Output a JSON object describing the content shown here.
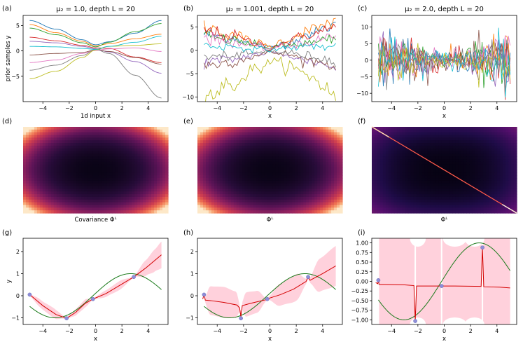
{
  "panel_letters": [
    "(a)",
    "(b)",
    "(c)",
    "(d)",
    "(e)",
    "(f)",
    "(g)",
    "(h)",
    "(i)"
  ],
  "colors": {
    "series": [
      "#1f77b4",
      "#ff7f0e",
      "#2ca02c",
      "#d62728",
      "#9467bd",
      "#8c564b",
      "#e377c2",
      "#7f7f7f",
      "#bcbd22",
      "#17becf"
    ],
    "mean": "#d40000",
    "truth": "#1a7a1a",
    "band": "#ffd1dc",
    "points": "#8e8ed8"
  },
  "chart_data": [
    {
      "id": "a",
      "type": "line",
      "title": "μ₂ = 1.0, depth L = 20",
      "xlabel": "1d input x",
      "ylabel": "prior samples y",
      "xlim": [
        -5.5,
        5.5
      ],
      "ylim": [
        -10,
        7
      ],
      "xticks": [
        -4,
        -2,
        0,
        2,
        4
      ],
      "yticks": [
        -5,
        0,
        5
      ],
      "x": [
        -5,
        -3,
        -1,
        0,
        1,
        3,
        5
      ],
      "series": [
        {
          "values": [
            6,
            4.3,
            2.2,
            1.2,
            1.8,
            3.5,
            6
          ]
        },
        {
          "values": [
            5.2,
            3.6,
            1.9,
            1.0,
            1.4,
            2.4,
            3.3
          ]
        },
        {
          "values": [
            4.5,
            3.2,
            1.6,
            0.8,
            1.7,
            3.8,
            5.4
          ]
        },
        {
          "values": [
            2.7,
            2.0,
            1.1,
            0.6,
            0.5,
            -1.2,
            -2.3
          ]
        },
        {
          "values": [
            1.9,
            1.6,
            0.9,
            0.4,
            -0.2,
            -2.1,
            -4.4
          ]
        },
        {
          "values": [
            -0.8,
            -0.5,
            -0.3,
            0.2,
            -0.1,
            -1.3,
            -2.6
          ]
        },
        {
          "values": [
            -2.3,
            -1.8,
            -0.5,
            0.1,
            0.4,
            0.6,
            -0.1
          ]
        },
        {
          "values": [
            -3.8,
            -2.8,
            -0.9,
            0.3,
            -0.5,
            -4.8,
            -9.3
          ]
        },
        {
          "values": [
            -5.5,
            -4.0,
            -1.3,
            0.2,
            0.9,
            1.1,
            1.4
          ]
        },
        {
          "values": [
            0.9,
            0.8,
            0.5,
            0.3,
            0.9,
            1.7,
            2.9
          ]
        }
      ]
    },
    {
      "id": "b",
      "type": "line",
      "title": "μ₂ = 1.001, depth L = 20",
      "xlabel": "x",
      "ylabel": "",
      "xlim": [
        -5.5,
        5.5
      ],
      "ylim": [
        -11,
        7.5
      ],
      "xticks": [
        -4,
        -2,
        0,
        2,
        4
      ],
      "yticks": [
        -10,
        -5,
        0,
        5
      ],
      "x": [
        -5,
        -3,
        -1,
        0,
        1,
        3,
        5
      ],
      "noise": 0.5,
      "series": [
        {
          "values": [
            3.5,
            2.8,
            1.1,
            0.5,
            1.5,
            3.5,
            5.5
          ]
        },
        {
          "values": [
            5.0,
            3.6,
            1.6,
            0.8,
            2.0,
            4.3,
            6.2
          ]
        },
        {
          "values": [
            3.0,
            2.2,
            1.2,
            0.6,
            1.0,
            1.5,
            2.3
          ]
        },
        {
          "values": [
            4.2,
            3.2,
            1.5,
            0.5,
            1.6,
            3.4,
            4.8
          ]
        },
        {
          "values": [
            -2.5,
            -2.0,
            -0.9,
            -0.5,
            -0.9,
            -2.3,
            -3.6
          ]
        },
        {
          "values": [
            -3.3,
            -2.5,
            -1.2,
            -0.4,
            -0.7,
            -2.2,
            -3.2
          ]
        },
        {
          "values": [
            2.6,
            1.8,
            0.8,
            0.4,
            0.8,
            1.7,
            3.2
          ]
        },
        {
          "values": [
            -1.5,
            -1.2,
            -0.6,
            -0.2,
            -0.4,
            -1.2,
            -2.3
          ]
        },
        {
          "values": [
            -10.0,
            -7.5,
            -4.0,
            -2.5,
            -3.0,
            -5.5,
            -9.5
          ]
        },
        {
          "values": [
            1.0,
            0.8,
            0.3,
            0.1,
            0.5,
            0.9,
            0.8
          ]
        }
      ]
    },
    {
      "id": "c",
      "type": "line",
      "title": "μ₂ = 2.0, depth L = 20",
      "xlabel": "x",
      "ylabel": "",
      "xlim": [
        -5.5,
        5.5
      ],
      "ylim": [
        -12.5,
        13.5
      ],
      "xticks": [
        -4,
        -2,
        0,
        2,
        4
      ],
      "yticks": [
        -10,
        -5,
        0,
        5,
        10
      ],
      "sigma_edge": 6.5,
      "sigma_center": 1.8,
      "n_series": 10
    },
    {
      "id": "d",
      "type": "heatmap",
      "title": "",
      "xlabel": "Covariance Φᴸ",
      "pattern": "covariance-smooth",
      "colorscale": "inferno"
    },
    {
      "id": "e",
      "type": "heatmap",
      "title": "",
      "xlabel": "Φᴸ",
      "pattern": "covariance-smooth",
      "colorscale": "inferno"
    },
    {
      "id": "f",
      "type": "heatmap",
      "title": "",
      "xlabel": "Φᴸ",
      "pattern": "covariance-diagonal",
      "colorscale": "inferno"
    },
    {
      "id": "g",
      "type": "line",
      "title": "",
      "xlabel": "x",
      "ylabel": "y",
      "xlim": [
        -5.5,
        5.5
      ],
      "ylim": [
        -1.3,
        2.6
      ],
      "xticks": [
        -4,
        -2,
        0,
        2,
        4
      ],
      "yticks": [
        -1,
        0,
        1,
        2
      ],
      "observations": {
        "x": [
          -5,
          -2.2,
          -0.2,
          2.9
        ],
        "y": [
          0.05,
          -1.02,
          -0.15,
          0.85
        ]
      },
      "truth": "sin(0.55(x+0.2))",
      "mean": {
        "x": [
          -5,
          -4,
          -3,
          -2.2,
          -1.5,
          -0.8,
          -0.2,
          0.8,
          1.5,
          2.2,
          2.9,
          3.8,
          5
        ],
        "y": [
          0.05,
          -0.45,
          -0.85,
          -1.02,
          -0.75,
          -0.35,
          -0.15,
          0.1,
          0.35,
          0.6,
          0.85,
          1.25,
          1.85
        ]
      },
      "band": {
        "x": [
          -5,
          -4.2,
          -3.2,
          -2.2,
          -1.4,
          -0.8,
          -0.2,
          0.8,
          1.8,
          2.9,
          3.8,
          4.5,
          5
        ],
        "halfwidth": [
          0.06,
          0.18,
          0.22,
          0.04,
          0.15,
          0.18,
          0.04,
          0.15,
          0.2,
          0.04,
          0.35,
          0.5,
          0.6
        ]
      }
    },
    {
      "id": "h",
      "type": "line",
      "title": "",
      "xlabel": "x",
      "ylabel": "",
      "xlim": [
        -5.5,
        5.5
      ],
      "ylim": [
        -1.3,
        2.6
      ],
      "xticks": [
        -4,
        -2,
        0,
        2,
        4
      ],
      "yticks": [
        -1,
        0,
        1,
        2
      ],
      "observations": {
        "x": [
          -5,
          -2.2,
          -0.2,
          2.9
        ],
        "y": [
          0.05,
          -1.02,
          -0.15,
          0.85
        ]
      },
      "truth": "sin(0.55(x+0.2))",
      "mean": {
        "x": [
          -5.1,
          -5,
          -4.9,
          -4.5,
          -3.5,
          -2.5,
          -2.3,
          -2.2,
          -2.1,
          -1.5,
          -0.8,
          -0.3,
          -0.2,
          -0.1,
          0.8,
          1.8,
          2.75,
          2.9,
          3.05,
          4,
          5
        ],
        "y": [
          -0.15,
          0.05,
          -0.2,
          -0.22,
          -0.3,
          -0.42,
          -0.55,
          -0.95,
          -0.45,
          -0.35,
          -0.25,
          -0.18,
          -0.15,
          -0.12,
          0.05,
          0.3,
          0.65,
          0.85,
          0.7,
          1.0,
          1.35
        ]
      },
      "band": {
        "x": [
          -5,
          -4.5,
          -3.5,
          -2.6,
          -2.2,
          -1.8,
          -1,
          -0.2,
          0.8,
          2,
          2.9,
          3.8,
          5
        ],
        "halfwidth": [
          0.08,
          0.65,
          0.7,
          0.6,
          0.08,
          0.55,
          0.5,
          0.06,
          0.5,
          0.6,
          0.08,
          0.75,
          0.9
        ]
      }
    },
    {
      "id": "i",
      "type": "line",
      "title": "",
      "xlabel": "x",
      "ylabel": "",
      "xlim": [
        -5.5,
        5.5
      ],
      "ylim": [
        -1.12,
        1.12
      ],
      "xticks": [
        -4,
        -2,
        0,
        2,
        4
      ],
      "yticks": [
        -1.0,
        -0.75,
        -0.5,
        -0.25,
        0.0,
        0.25,
        0.5,
        0.75,
        1.0
      ],
      "observations": {
        "x": [
          -5,
          -2.2,
          -0.2,
          2.9
        ],
        "y": [
          0.03,
          -1.03,
          -0.12,
          0.88
        ]
      },
      "truth": "sin(0.55(x+0.2))",
      "mean": {
        "x": [
          -5.2,
          -5.05,
          -5,
          -4.95,
          -4.6,
          -3,
          -2.3,
          -2.2,
          -2.1,
          -1.2,
          -0.25,
          -0.2,
          -0.15,
          0.8,
          2.8,
          2.9,
          3.0,
          4.2,
          5
        ],
        "y": [
          -0.03,
          -0.06,
          0.03,
          -0.08,
          -0.08,
          -0.09,
          -0.11,
          -1.03,
          -0.12,
          -0.12,
          -0.12,
          -0.12,
          -0.12,
          -0.12,
          -0.13,
          0.88,
          -0.14,
          -0.15,
          -0.17
        ]
      }
    }
  ]
}
